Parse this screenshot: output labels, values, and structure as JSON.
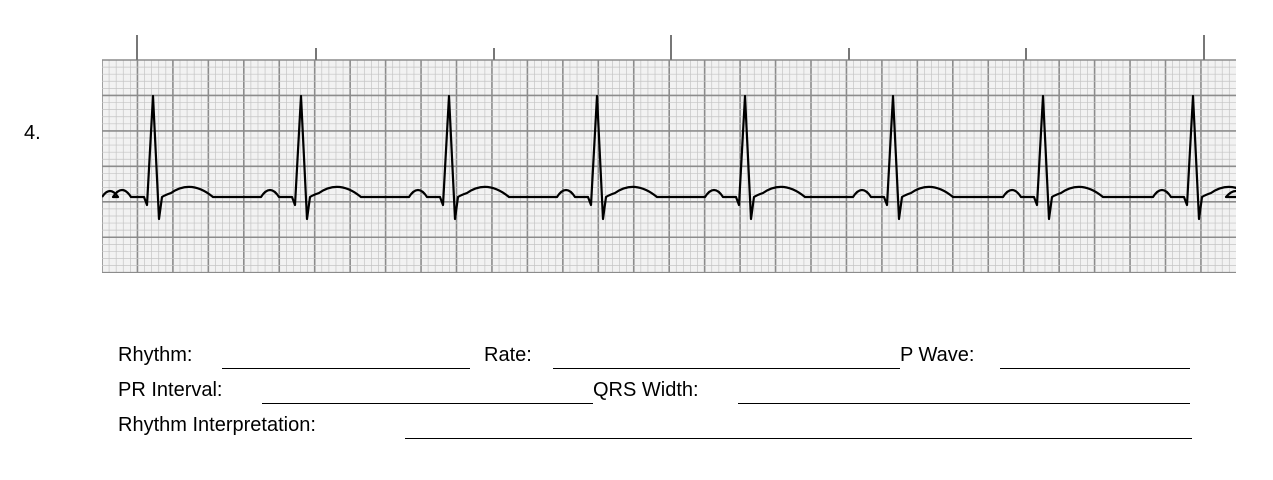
{
  "question_number": "4.",
  "form": {
    "rows": [
      [
        "Rhythm:",
        "Rate:",
        "P Wave:"
      ],
      [
        "PR Interval:",
        "QRS Width:"
      ],
      [
        "Rhythm Interpretation:"
      ]
    ]
  }
}
